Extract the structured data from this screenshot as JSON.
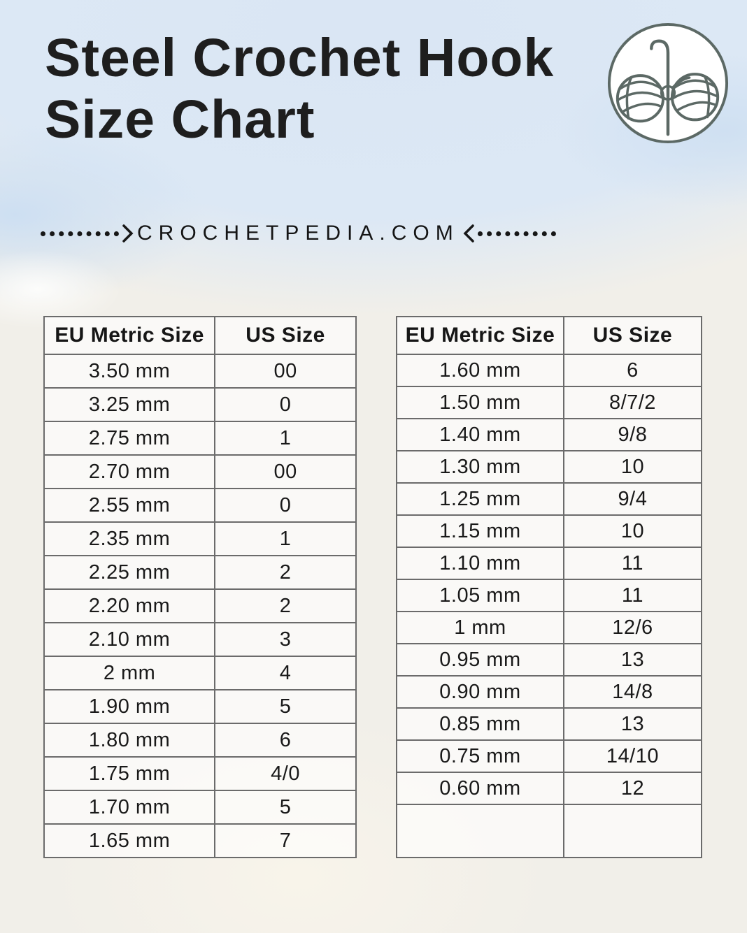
{
  "header": {
    "title": "Steel Crochet Hook Size Chart",
    "logo": "yarn-balls-and-crochet-hook"
  },
  "banner": {
    "url": "CROCHETPEDIA.COM"
  },
  "tables": [
    {
      "columns": [
        "EU Metric Size",
        "US Size"
      ],
      "rows": [
        [
          "3.50 mm",
          "00"
        ],
        [
          "3.25 mm",
          "0"
        ],
        [
          "2.75 mm",
          "1"
        ],
        [
          "2.70 mm",
          "00"
        ],
        [
          "2.55 mm",
          "0"
        ],
        [
          "2.35 mm",
          "1"
        ],
        [
          "2.25 mm",
          "2"
        ],
        [
          "2.20 mm",
          "2"
        ],
        [
          "2.10 mm",
          "3"
        ],
        [
          "2 mm",
          "4"
        ],
        [
          "1.90 mm",
          "5"
        ],
        [
          "1.80 mm",
          "6"
        ],
        [
          "1.75 mm",
          "4/0"
        ],
        [
          "1.70 mm",
          "5"
        ],
        [
          "1.65 mm",
          "7"
        ]
      ]
    },
    {
      "columns": [
        "EU Metric Size",
        "US Size"
      ],
      "rows": [
        [
          "1.60 mm",
          "6"
        ],
        [
          "1.50 mm",
          "8/7/2"
        ],
        [
          "1.40 mm",
          "9/8"
        ],
        [
          "1.30 mm",
          "10"
        ],
        [
          "1.25 mm",
          "9/4"
        ],
        [
          "1.15 mm",
          "10"
        ],
        [
          "1.10 mm",
          "11"
        ],
        [
          "1.05 mm",
          "11"
        ],
        [
          "1 mm",
          "12/6"
        ],
        [
          "0.95 mm",
          "13"
        ],
        [
          "0.90 mm",
          "14/8"
        ],
        [
          "0.85 mm",
          "13"
        ],
        [
          "0.75 mm",
          "14/10"
        ],
        [
          "0.60 mm",
          "12"
        ],
        [
          "",
          ""
        ]
      ]
    }
  ],
  "colors": {
    "title_text": "#1e1e1e",
    "table_border": "#6b6b6b",
    "logo_stroke": "#5c6965",
    "background_blue": "#dce8f5",
    "background_paper": "#f1efe9"
  }
}
